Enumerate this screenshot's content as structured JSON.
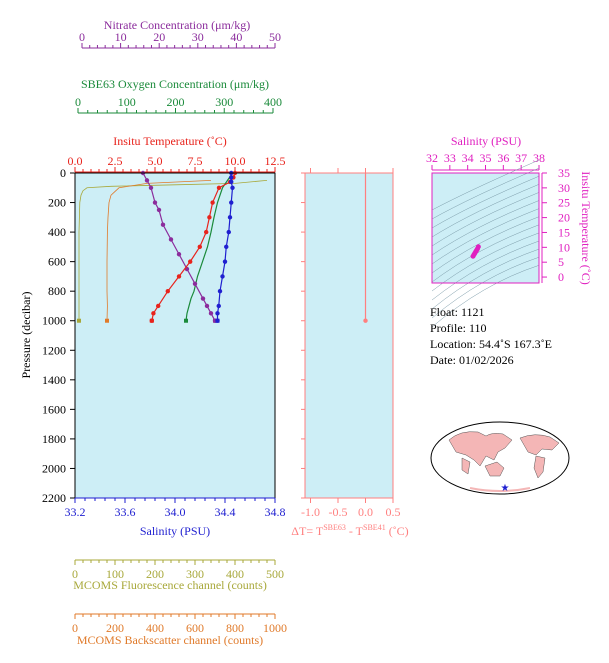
{
  "colors": {
    "nitrate": "#8b2c9c",
    "oxygen": "#1a8a3a",
    "temperature": "#e8231c",
    "salinity": "#1f1fd0",
    "fluorescence": "#a8a83a",
    "backscatter": "#e07a2a",
    "deltaT": "#ff7f7f",
    "insitu_pink": "#e020c0",
    "plot_bg": "#cdeef6"
  },
  "axes": {
    "nitrate": {
      "label": "Nitrate Concentration (μm/kg)",
      "ticks": [
        "0",
        "10",
        "20",
        "30",
        "40",
        "50"
      ]
    },
    "oxygen": {
      "label": "SBE63 Oxygen Concentration (μm/kg)",
      "ticks": [
        "0",
        "100",
        "200",
        "300",
        "400"
      ]
    },
    "temperature": {
      "label": "Insitu Temperature (˚C)",
      "ticks": [
        "0.0",
        "2.5",
        "5.0",
        "7.5",
        "10.0",
        "12.5"
      ]
    },
    "pressure": {
      "label": "Pressure (decibar)",
      "ticks": [
        "0",
        "200",
        "400",
        "600",
        "800",
        "1000",
        "1200",
        "1400",
        "1600",
        "1800",
        "2000",
        "2200"
      ]
    },
    "salinity": {
      "label": "Salinity (PSU)",
      "ticks": [
        "33.2",
        "33.6",
        "34.0",
        "34.4",
        "34.8"
      ]
    },
    "fluorescence": {
      "label": "MCOMS Fluorescence channel (counts)",
      "ticks": [
        "0",
        "100",
        "200",
        "300",
        "400",
        "500"
      ]
    },
    "backscatter": {
      "label": "MCOMS Backscatter channel (counts)",
      "ticks": [
        "0",
        "200",
        "400",
        "600",
        "800",
        "1000"
      ]
    },
    "deltaT": {
      "label_prefix": "ΔT= T",
      "sup1": "SBE63",
      "label_mid": " - T",
      "sup2": "SBE41",
      "label_suffix": " (˚C)",
      "ticks": [
        "-1.0",
        "-0.5",
        "0.0",
        "0.5"
      ]
    },
    "ts_salinity": {
      "label": "Salinity (PSU)",
      "ticks": [
        "32",
        "33",
        "34",
        "35",
        "36",
        "37",
        "38"
      ]
    },
    "ts_temperature": {
      "label": "Insitu Temperature (˚C)",
      "ticks": [
        "0",
        "5",
        "10",
        "15",
        "20",
        "25",
        "30",
        "35"
      ]
    }
  },
  "info": {
    "float": "Float:  1121",
    "profile": "Profile:  110",
    "location": "Location:  54.4˚S  167.3˚E",
    "date": "Date:  01/02/2026"
  },
  "chart_data": [
    {
      "type": "line",
      "title": "",
      "ylabel": "Pressure (decibar)",
      "ylim": [
        2200,
        0
      ],
      "series": [
        {
          "name": "Insitu Temperature",
          "xlim": [
            0,
            12.5
          ],
          "x": [
            10.0,
            9.9,
            9.7,
            9.0,
            8.6,
            8.4,
            8.2,
            7.8,
            7.2,
            6.5,
            5.8,
            5.2,
            4.9,
            4.8
          ],
          "y": [
            0,
            30,
            60,
            100,
            200,
            300,
            400,
            500,
            600,
            700,
            800,
            900,
            950,
            1000
          ]
        },
        {
          "name": "Salinity",
          "xlim": [
            33.2,
            34.8
          ],
          "x": [
            34.45,
            34.45,
            34.45,
            34.46,
            34.45,
            34.44,
            34.43,
            34.41,
            34.4,
            34.38,
            34.36,
            34.35,
            34.34,
            34.34
          ],
          "y": [
            0,
            30,
            60,
            100,
            200,
            300,
            400,
            500,
            600,
            700,
            800,
            900,
            950,
            1000
          ]
        },
        {
          "name": "Nitrate Concentration",
          "xlim": [
            0,
            50
          ],
          "x": [
            17,
            18,
            19,
            20,
            21,
            22,
            24,
            26,
            28,
            30,
            32,
            33,
            34,
            35
          ],
          "y": [
            0,
            50,
            100,
            200,
            250,
            350,
            450,
            550,
            650,
            750,
            850,
            900,
            950,
            1000
          ]
        },
        {
          "name": "SBE63 Oxygen Concentration",
          "xlim": [
            0,
            400
          ],
          "x": [
            315,
            305,
            295,
            285,
            278,
            272,
            265,
            255,
            245,
            238,
            232,
            228,
            224,
            222
          ],
          "y": [
            0,
            50,
            100,
            200,
            300,
            400,
            500,
            600,
            700,
            800,
            850,
            900,
            950,
            1000
          ]
        },
        {
          "name": "MCOMS Fluorescence channel",
          "xlim": [
            0,
            500
          ],
          "x": [
            480,
            400,
            250,
            90,
            30,
            20,
            15,
            12,
            10,
            10,
            10,
            10,
            10
          ],
          "y": [
            50,
            70,
            80,
            90,
            100,
            120,
            150,
            200,
            400,
            600,
            800,
            900,
            1000
          ]
        },
        {
          "name": "MCOMS Backscatter channel",
          "xlim": [
            0,
            1000
          ],
          "x": [
            680,
            360,
            220,
            180,
            170,
            165,
            162,
            160,
            160,
            162,
            160
          ],
          "y": [
            50,
            70,
            100,
            150,
            200,
            300,
            400,
            600,
            800,
            900,
            1000
          ]
        }
      ]
    },
    {
      "type": "line",
      "title": "",
      "xlim": [
        -1.1,
        0.5
      ],
      "ylim": [
        2200,
        0
      ],
      "x": [
        0.0,
        0.0,
        0.0,
        0.0,
        0.0
      ],
      "y": [
        0,
        250,
        500,
        750,
        1000
      ]
    },
    {
      "type": "scatter",
      "title": "",
      "xlim": [
        32,
        38
      ],
      "ylim": [
        -2,
        35
      ],
      "x": [
        34.3,
        34.35,
        34.4,
        34.45,
        34.5,
        34.55,
        34.6
      ],
      "y": [
        7.0,
        7.5,
        8.0,
        8.5,
        9.0,
        9.5,
        10.2
      ]
    }
  ]
}
